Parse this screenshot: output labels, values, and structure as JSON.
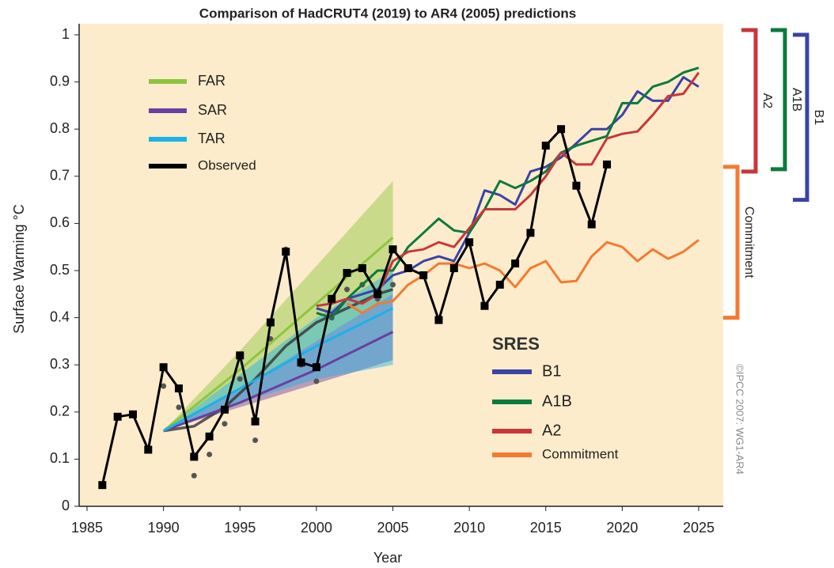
{
  "chart_data": {
    "type": "line",
    "title": "Comparison of HadCRUT4 (2019) to AR4 (2005) predictions",
    "xlabel": "Year",
    "ylabel": "Surface Warming °C",
    "xlim": [
      1985,
      2025
    ],
    "xticks": [
      1985,
      1990,
      1995,
      2000,
      2005,
      2010,
      2015,
      2020,
      2025
    ],
    "ylim": [
      0,
      1
    ],
    "yticks": [
      0,
      0.1,
      0.2,
      0.3,
      0.4,
      0.5,
      0.6,
      0.7,
      0.8,
      0.9,
      1
    ],
    "background": "#fdeccb",
    "legend_title": "SRES",
    "series": [
      {
        "name": "FAR",
        "color": "#8cc63e",
        "legend": 1,
        "x": [
          1990,
          1995,
          2000,
          2005
        ],
        "values": [
          0.16,
          0.29,
          0.43,
          0.57
        ],
        "lower": [
          0.16,
          0.25,
          0.35,
          0.45
        ],
        "upper": [
          0.16,
          0.33,
          0.51,
          0.69
        ]
      },
      {
        "name": "SAR",
        "color": "#6a3fa0",
        "legend": 1,
        "x": [
          1990,
          1995,
          2000,
          2005
        ],
        "values": [
          0.16,
          0.22,
          0.29,
          0.37
        ],
        "lower": [
          0.16,
          0.21,
          0.26,
          0.31
        ],
        "upper": [
          0.16,
          0.25,
          0.35,
          0.45
        ]
      },
      {
        "name": "TAR",
        "color": "#1ab2e8",
        "legend": 1,
        "x": [
          1990,
          1995,
          2000,
          2005
        ],
        "values": [
          0.16,
          0.25,
          0.34,
          0.42
        ],
        "lower": [
          0.16,
          0.22,
          0.27,
          0.3
        ],
        "upper": [
          0.16,
          0.28,
          0.4,
          0.5
        ]
      },
      {
        "name": "Observed",
        "color": "#000000",
        "legend": 1,
        "markers": "square",
        "x": [
          1986,
          1987,
          1988,
          1989,
          1990,
          1991,
          1992,
          1993,
          1994,
          1995,
          1996,
          1997,
          1998,
          1999,
          2000,
          2001,
          2002,
          2003,
          2004,
          2005,
          2006,
          2007,
          2008,
          2009,
          2010,
          2011,
          2012,
          2013,
          2014,
          2015,
          2016,
          2017,
          2018,
          2019
        ],
        "values": [
          0.045,
          0.19,
          0.195,
          0.12,
          0.295,
          0.25,
          0.105,
          0.148,
          0.205,
          0.32,
          0.18,
          0.39,
          0.54,
          0.305,
          0.295,
          0.44,
          0.495,
          0.505,
          0.45,
          0.545,
          0.505,
          0.49,
          0.395,
          0.505,
          0.56,
          0.425,
          0.47,
          0.515,
          0.58,
          0.765,
          0.8,
          0.68,
          0.598,
          0.725
        ]
      },
      {
        "name": "B1",
        "color": "#3a43a8",
        "legend": 2,
        "x": [
          2000,
          2001,
          2002,
          2003,
          2004,
          2005,
          2006,
          2007,
          2008,
          2009,
          2010,
          2011,
          2012,
          2013,
          2014,
          2015,
          2016,
          2017,
          2018,
          2019,
          2020,
          2021,
          2022,
          2023,
          2024,
          2025
        ],
        "values": [
          0.42,
          0.41,
          0.44,
          0.45,
          0.46,
          0.49,
          0.5,
          0.52,
          0.53,
          0.52,
          0.58,
          0.67,
          0.66,
          0.64,
          0.71,
          0.72,
          0.74,
          0.77,
          0.8,
          0.8,
          0.83,
          0.88,
          0.86,
          0.86,
          0.91,
          0.89
        ]
      },
      {
        "name": "A1B",
        "color": "#0b7a3e",
        "legend": 2,
        "x": [
          2000,
          2001,
          2002,
          2003,
          2004,
          2005,
          2006,
          2007,
          2008,
          2009,
          2010,
          2011,
          2012,
          2013,
          2014,
          2015,
          2016,
          2017,
          2018,
          2019,
          2020,
          2021,
          2022,
          2023,
          2024,
          2025
        ],
        "values": [
          0.41,
          0.4,
          0.44,
          0.47,
          0.5,
          0.5,
          0.55,
          0.58,
          0.61,
          0.585,
          0.58,
          0.63,
          0.69,
          0.675,
          0.69,
          0.71,
          0.75,
          0.765,
          0.775,
          0.785,
          0.855,
          0.855,
          0.89,
          0.9,
          0.92,
          0.93
        ]
      },
      {
        "name": "A2",
        "color": "#c8363a",
        "legend": 2,
        "x": [
          2000,
          2001,
          2002,
          2003,
          2004,
          2005,
          2006,
          2007,
          2008,
          2009,
          2010,
          2011,
          2012,
          2013,
          2014,
          2015,
          2016,
          2017,
          2018,
          2019,
          2020,
          2021,
          2022,
          2023,
          2024,
          2025
        ],
        "values": [
          0.425,
          0.43,
          0.44,
          0.43,
          0.45,
          0.52,
          0.54,
          0.545,
          0.56,
          0.55,
          0.59,
          0.63,
          0.63,
          0.63,
          0.66,
          0.7,
          0.75,
          0.725,
          0.725,
          0.78,
          0.79,
          0.795,
          0.83,
          0.87,
          0.875,
          0.92
        ]
      },
      {
        "name": "Commitment",
        "color": "#f47a30",
        "legend": 2,
        "x": [
          2002,
          2003,
          2004,
          2005,
          2006,
          2007,
          2008,
          2009,
          2010,
          2011,
          2012,
          2013,
          2014,
          2015,
          2016,
          2017,
          2018,
          2019,
          2020,
          2021,
          2022,
          2023,
          2024,
          2025
        ],
        "values": [
          0.43,
          0.41,
          0.43,
          0.435,
          0.47,
          0.49,
          0.515,
          0.515,
          0.505,
          0.515,
          0.5,
          0.465,
          0.505,
          0.52,
          0.475,
          0.478,
          0.53,
          0.56,
          0.55,
          0.52,
          0.545,
          0.525,
          0.54,
          0.565
        ]
      }
    ],
    "smoothed": {
      "color": "#333333",
      "x": [
        1990,
        1992,
        1994,
        1996,
        1998,
        2000,
        2002,
        2004,
        2005
      ],
      "values": [
        0.16,
        0.17,
        0.21,
        0.27,
        0.34,
        0.39,
        0.42,
        0.45,
        0.46
      ]
    },
    "points": {
      "color": "#555555",
      "x": [
        1990,
        1991,
        1992,
        1993,
        1994,
        1995,
        1996,
        1997,
        1998,
        1999,
        2000,
        2001,
        2002,
        2003,
        2004,
        2005
      ],
      "values": [
        0.255,
        0.21,
        0.065,
        0.11,
        0.175,
        0.27,
        0.14,
        0.355,
        0.545,
        0.3,
        0.265,
        0.4,
        0.46,
        0.47,
        0.44,
        0.47
      ]
    },
    "brackets": [
      {
        "label": "Commitment",
        "color": "#f47a30",
        "range": [
          0.4,
          0.72
        ]
      },
      {
        "label": "A2",
        "color": "#c8363a",
        "range": [
          0.71,
          1.01
        ]
      },
      {
        "label": "A1B",
        "color": "#0b7a3e",
        "range": [
          0.715,
          1.01
        ]
      },
      {
        "label": "B1",
        "color": "#3a43a8",
        "range": [
          0.65,
          1.0
        ]
      }
    ],
    "credit": "©IPCC 2007: WG1-AR4"
  }
}
